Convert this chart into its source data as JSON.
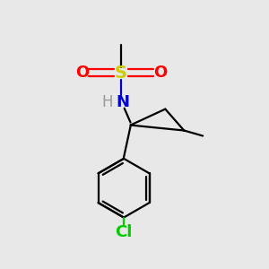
{
  "background_color": "#e8e8e8",
  "bond_color": "#000000",
  "S_color": "#cccc00",
  "O_color": "#ff0000",
  "N_color": "#0000cc",
  "Cl_color": "#00cc00",
  "H_color": "#999999",
  "C_color": "#000000",
  "figsize": [
    3.0,
    3.0
  ],
  "dpi": 100,
  "xlim": [
    0,
    10
  ],
  "ylim": [
    0,
    10
  ]
}
